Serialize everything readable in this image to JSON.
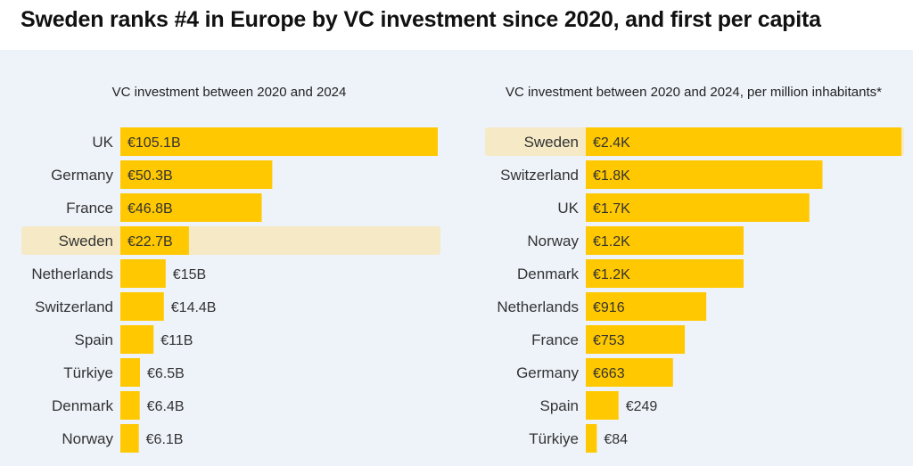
{
  "title": "Sweden ranks #4 in Europe by VC investment since 2020, and first per capita",
  "colors": {
    "bar": "#ffc800",
    "highlight": "#f5e9c6",
    "panel": "#eef3fa"
  },
  "chart_data": [
    {
      "type": "bar",
      "orientation": "horizontal",
      "title": "VC investment between 2020 and 2024",
      "categories": [
        "UK",
        "Germany",
        "France",
        "Sweden",
        "Netherlands",
        "Switzerland",
        "Spain",
        "Türkiye",
        "Denmark",
        "Norway"
      ],
      "values": [
        105.1,
        50.3,
        46.8,
        22.7,
        15,
        14.4,
        11,
        6.5,
        6.4,
        6.1
      ],
      "labels": [
        "€105.1B",
        "€50.3B",
        "€46.8B",
        "€22.7B",
        "€15B",
        "€14.4B",
        "€11B",
        "€6.5B",
        "€6.4B",
        "€6.1B"
      ],
      "unit": "€B",
      "highlight": "Sweden",
      "xlim": [
        0,
        105.1
      ]
    },
    {
      "type": "bar",
      "orientation": "horizontal",
      "title": "VC investment between 2020 and 2024, per million inhabitants*",
      "categories": [
        "Sweden",
        "Switzerland",
        "UK",
        "Norway",
        "Denmark",
        "Netherlands",
        "France",
        "Germany",
        "Spain",
        "Türkiye"
      ],
      "values": [
        2400,
        1800,
        1700,
        1200,
        1200,
        916,
        753,
        663,
        249,
        84
      ],
      "labels": [
        "€2.4K",
        "€1.8K",
        "€1.7K",
        "€1.2K",
        "€1.2K",
        "€916",
        "€753",
        "€663",
        "€249",
        "€84"
      ],
      "unit": "€ per million inhabitants",
      "highlight": "Sweden",
      "xlim": [
        0,
        2400
      ]
    }
  ]
}
